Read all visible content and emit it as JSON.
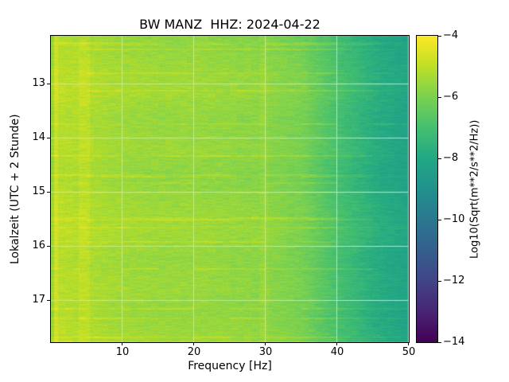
{
  "figure": {
    "title": "BW MANZ  HHZ: 2024-04-22",
    "xlabel": "Frequency [Hz]",
    "ylabel": "Lokalzeit (UTC + 2 Stunde)",
    "colorbar_label": "Log10(Sqrt(m**2/s**2/Hz))",
    "x_ticks": [
      "10",
      "20",
      "30",
      "40",
      "50"
    ],
    "y_ticks": [
      "13",
      "14",
      "15",
      "16",
      "17"
    ],
    "colorbar_ticks": [
      "−4",
      "−6",
      "−8",
      "−10",
      "−12",
      "−14"
    ]
  },
  "chart_data": {
    "type": "heatmap",
    "subtype": "spectrogram",
    "title": "BW MANZ  HHZ: 2024-04-22",
    "xlabel": "Frequency [Hz]",
    "ylabel": "Lokalzeit (UTC + 2 Stunde)",
    "colorbar_label": "Log10(Sqrt(m**2/s**2/Hz))",
    "colormap": "viridis",
    "grid": true,
    "legend_position": "colorbar-right",
    "value_range": [
      -14,
      -4
    ],
    "x_range_hz": [
      0,
      50
    ],
    "y_range_hours": [
      12.12,
      17.78
    ],
    "x_tick_values": [
      10,
      20,
      30,
      40,
      50
    ],
    "y_tick_values": [
      13,
      14,
      15,
      16,
      17
    ],
    "colorbar_tick_values": [
      -4,
      -6,
      -8,
      -10,
      -12,
      -14
    ],
    "freq_bins_hz": [
      0,
      5,
      10,
      15,
      20,
      25,
      30,
      35,
      40,
      45,
      50
    ],
    "time_bins_hours": [
      12.2,
      12.7,
      13.2,
      13.7,
      14.2,
      14.6,
      15.1,
      15.6,
      16.1,
      16.6,
      17.1,
      17.6
    ],
    "values_log10_sqrt_psd": [
      [
        -5.2,
        -5.4,
        -5.6,
        -5.7,
        -5.7,
        -5.8,
        -5.9,
        -6.2,
        -7.1,
        -7.9,
        -8.4
      ],
      [
        -5.0,
        -5.2,
        -5.4,
        -5.5,
        -5.5,
        -5.6,
        -5.7,
        -6.0,
        -6.9,
        -7.7,
        -8.2
      ],
      [
        -4.9,
        -5.1,
        -5.3,
        -5.4,
        -5.4,
        -5.5,
        -5.6,
        -5.9,
        -6.8,
        -7.6,
        -8.1
      ],
      [
        -5.1,
        -5.3,
        -5.5,
        -5.6,
        -5.6,
        -5.7,
        -5.8,
        -6.1,
        -7.0,
        -7.8,
        -8.3
      ],
      [
        -5.0,
        -5.2,
        -5.4,
        -5.5,
        -5.5,
        -5.6,
        -5.7,
        -6.0,
        -6.9,
        -7.7,
        -8.2
      ],
      [
        -5.2,
        -5.4,
        -5.6,
        -5.7,
        -5.7,
        -5.8,
        -5.9,
        -6.2,
        -7.1,
        -7.9,
        -8.4
      ],
      [
        -5.0,
        -5.2,
        -5.4,
        -5.5,
        -5.5,
        -5.6,
        -5.7,
        -6.0,
        -6.9,
        -7.7,
        -8.2
      ],
      [
        -4.9,
        -5.1,
        -5.3,
        -5.4,
        -5.4,
        -5.5,
        -5.6,
        -5.9,
        -6.8,
        -7.6,
        -8.1
      ],
      [
        -5.1,
        -5.3,
        -5.5,
        -5.6,
        -5.6,
        -5.7,
        -5.8,
        -6.1,
        -7.0,
        -7.8,
        -8.3
      ],
      [
        -5.0,
        -5.2,
        -5.4,
        -5.5,
        -5.5,
        -5.6,
        -5.7,
        -6.0,
        -6.9,
        -7.7,
        -8.2
      ],
      [
        -5.1,
        -5.3,
        -5.5,
        -5.6,
        -5.6,
        -5.7,
        -5.8,
        -6.1,
        -7.0,
        -7.8,
        -8.3
      ],
      [
        -4.9,
        -5.1,
        -5.3,
        -5.4,
        -5.4,
        -5.5,
        -5.6,
        -5.9,
        -6.8,
        -7.6,
        -8.1
      ]
    ]
  }
}
